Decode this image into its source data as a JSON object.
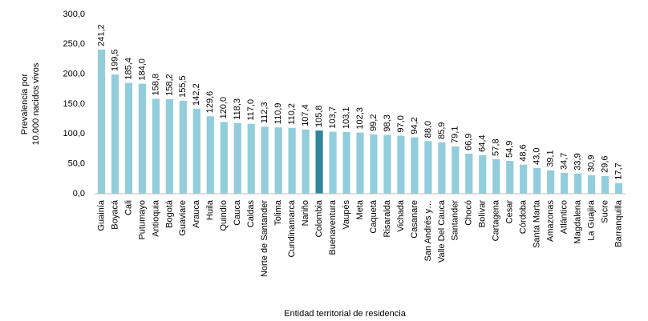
{
  "chart_data": {
    "type": "bar",
    "ylabel": [
      "Prevalencia por",
      "10.000 nacidos vivos"
    ],
    "xlabel": "Entidad territorial de residencia",
    "categories": [
      "Guainía",
      "Boyacá",
      "Cali",
      "Putumayo",
      "Antioquia",
      "Bogotá",
      "Guaviare",
      "Arauca",
      "Huila",
      "Quindío",
      "Cauca",
      "Caldas",
      "Norte de Santander",
      "Tolima",
      "Cundinamarca",
      "Nariño",
      "Colombia",
      "Buenaventura",
      "Vaupés",
      "Meta",
      "Caquetá",
      "Risaralda",
      "Vichada",
      "Casanare",
      "San Andrés y…",
      "Valle Del Cauca",
      "Santander",
      "Chocó",
      "Bolívar",
      "Cartagena",
      "Cesar",
      "Córdoba",
      "Santa Marta",
      "Amazonas",
      "Atlántico",
      "Magdalena",
      "La Guajira",
      "Sucre",
      "Barranquilla"
    ],
    "values": [
      241.2,
      199.5,
      185.4,
      184.0,
      158.8,
      158.2,
      155.5,
      142.2,
      129.6,
      120.0,
      118.3,
      117.0,
      112.3,
      110.9,
      110.2,
      107.4,
      105.8,
      103.7,
      103.1,
      102.3,
      99.2,
      98.3,
      97.0,
      94.2,
      88.0,
      85.9,
      79.1,
      66.9,
      64.4,
      57.8,
      54.9,
      48.6,
      43.0,
      39.1,
      34.7,
      33.9,
      30.9,
      29.6,
      17.7
    ],
    "value_labels": [
      "241,2",
      "199,5",
      "185,4",
      "184,0",
      "158,8",
      "158,2",
      "155,5",
      "142,2",
      "129,6",
      "120,0",
      "118,3",
      "117,0",
      "112,3",
      "110,9",
      "110,2",
      "107,4",
      "105,8",
      "103,7",
      "103,1",
      "102,3",
      "99,2",
      "98,3",
      "97,0",
      "94,2",
      "88,0",
      "85,9",
      "79,1",
      "66,9",
      "64,4",
      "57,8",
      "54,9",
      "48,6",
      "43,0",
      "39,1",
      "34,7",
      "33,9",
      "30,9",
      "29,6",
      "17,7"
    ],
    "color": "#92cddc",
    "highlight": {
      "category": "Colombia",
      "color": "#31859c"
    },
    "ylim": [
      0,
      300
    ],
    "yticks": [
      {
        "value": 0,
        "label": "0,0"
      },
      {
        "value": 50,
        "label": "50,0"
      },
      {
        "value": 100,
        "label": "100,0"
      },
      {
        "value": 150,
        "label": "150,0"
      },
      {
        "value": 200,
        "label": "200,0"
      },
      {
        "value": 250,
        "label": "250,0"
      },
      {
        "value": 300,
        "label": "300,0"
      }
    ],
    "grid": false
  }
}
